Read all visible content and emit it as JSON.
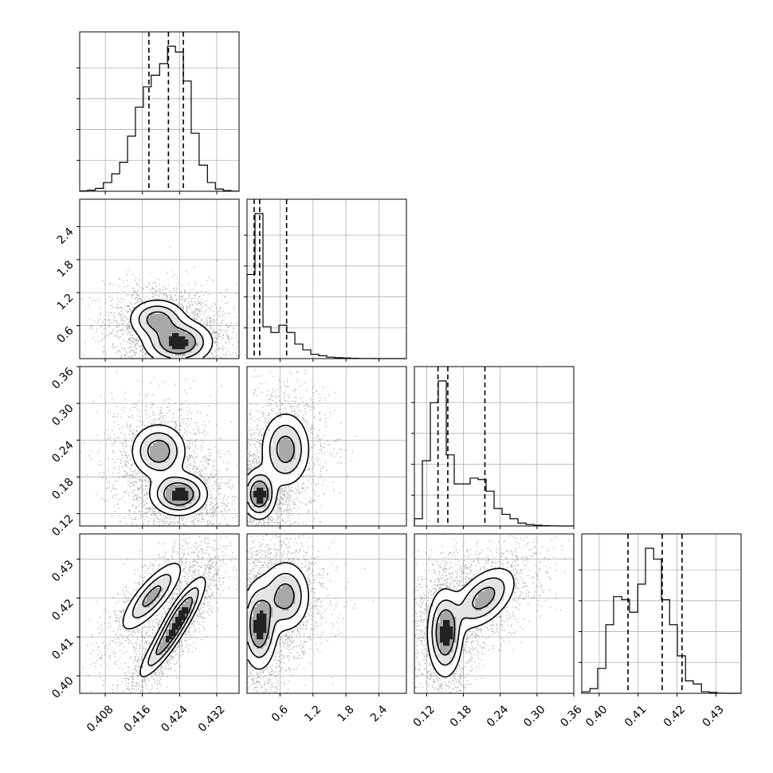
{
  "chart_data": {
    "type": "corner",
    "grid": true,
    "parameters": [
      {
        "range": [
          0.4025,
          0.4368
        ],
        "ticks": [
          0.408,
          0.416,
          0.424,
          0.432
        ],
        "tick_labels": [
          "0.408",
          "0.416",
          "0.424",
          "0.432"
        ]
      },
      {
        "range": [
          0.0,
          2.9
        ],
        "ticks": [
          0.6,
          1.2,
          1.8,
          2.4
        ],
        "tick_labels": [
          "0.6",
          "1.2",
          "1.8",
          "2.4"
        ]
      },
      {
        "range": [
          0.1,
          0.36
        ],
        "ticks": [
          0.12,
          0.18,
          0.24,
          0.3,
          0.36
        ],
        "tick_labels": [
          "0.12",
          "0.18",
          "0.24",
          "0.30",
          "0.36"
        ]
      },
      {
        "range": [
          0.3955,
          0.4365
        ],
        "ticks": [
          0.4,
          0.41,
          0.42,
          0.43
        ],
        "tick_labels": [
          "0.40",
          "0.41",
          "0.42",
          "0.43"
        ]
      }
    ],
    "diagonal": [
      {
        "bin_edges": [
          0.4025,
          0.4042,
          0.4059,
          0.4076,
          0.4094,
          0.4111,
          0.4128,
          0.4145,
          0.4162,
          0.4179,
          0.4197,
          0.4214,
          0.4231,
          0.4248,
          0.4265,
          0.4282,
          0.43,
          0.4317,
          0.4334,
          0.4351,
          0.4368
        ],
        "counts": [
          0.2,
          0.8,
          2,
          6,
          12,
          20,
          38,
          58,
          72,
          80,
          88,
          100,
          96,
          76,
          40,
          18,
          6,
          1.5,
          0.5,
          0.1
        ],
        "quantiles": [
          0.4174,
          0.4216,
          0.4248
        ]
      },
      {
        "bin_edges": [
          0.0,
          0.145,
          0.29,
          0.435,
          0.58,
          0.725,
          0.87,
          1.015,
          1.16,
          1.305,
          1.45,
          1.595,
          1.74,
          1.885,
          2.03,
          2.175,
          2.32,
          2.465,
          2.61,
          2.755,
          2.9
        ],
        "counts": [
          58,
          100,
          22,
          18,
          23,
          18,
          10,
          6,
          3,
          2,
          1,
          0.6,
          0.4,
          0.2,
          0.1,
          0.05,
          0.02,
          0.01,
          0.01,
          0.0
        ],
        "quantiles": [
          0.13,
          0.23,
          0.72
        ]
      },
      {
        "bin_edges": [
          0.1,
          0.113,
          0.126,
          0.139,
          0.152,
          0.165,
          0.178,
          0.191,
          0.204,
          0.217,
          0.23,
          0.243,
          0.256,
          0.269,
          0.282,
          0.295,
          0.308,
          0.321,
          0.334,
          0.347,
          0.36
        ],
        "counts": [
          5,
          45,
          85,
          100,
          49,
          29,
          29,
          33,
          32,
          24,
          12,
          8,
          5,
          2,
          1,
          0.5,
          0.2,
          0.1,
          0.0,
          0.0
        ],
        "quantiles": [
          0.1385,
          0.1545,
          0.215
        ]
      },
      {
        "bin_edges": [
          0.3955,
          0.3976,
          0.3996,
          0.4017,
          0.4037,
          0.4058,
          0.4078,
          0.4099,
          0.4119,
          0.414,
          0.416,
          0.4181,
          0.4201,
          0.4222,
          0.4242,
          0.4263,
          0.4283,
          0.4304,
          0.4324,
          0.4345,
          0.4365
        ],
        "counts": [
          1,
          3,
          16,
          44,
          62,
          60,
          52,
          70,
          93,
          86,
          60,
          44,
          24,
          8,
          6,
          1,
          0.5,
          0.1,
          0.0,
          0.0
        ],
        "quantiles": [
          0.4074,
          0.4162,
          0.4213
        ]
      }
    ],
    "pairs": [
      {
        "x": 0,
        "y": 1,
        "modes": [
          {
            "cx": 0.4237,
            "cy": 0.3,
            "sx": 0.0036,
            "sy": 0.2,
            "w": 1.0
          },
          {
            "cx": 0.4192,
            "cy": 0.72,
            "sx": 0.003,
            "sy": 0.18,
            "w": 0.75
          }
        ]
      },
      {
        "x": 0,
        "y": 2,
        "modes": [
          {
            "cx": 0.4238,
            "cy": 0.152,
            "sx": 0.003,
            "sy": 0.017,
            "w": 1.0
          },
          {
            "cx": 0.4195,
            "cy": 0.222,
            "sx": 0.0029,
            "sy": 0.022,
            "w": 0.8
          }
        ]
      },
      {
        "x": 0,
        "y": 3,
        "modes": [
          {
            "cx": 0.4241,
            "cy": 0.4155,
            "sx": 0.0027,
            "sy": 0.0049,
            "rho": 0.85,
            "w": 1.0
          },
          {
            "cx": 0.42,
            "cy": 0.407,
            "sx": 0.0026,
            "sy": 0.0042,
            "rho": 0.85,
            "w": 0.55
          },
          {
            "cx": 0.418,
            "cy": 0.4205,
            "sx": 0.0033,
            "sy": 0.0045,
            "rho": 0.8,
            "w": 0.75
          }
        ]
      },
      {
        "x": 1,
        "y": 2,
        "modes": [
          {
            "cx": 0.22,
            "cy": 0.152,
            "sx": 0.15,
            "sy": 0.02,
            "w": 1.0
          },
          {
            "cx": 0.7,
            "cy": 0.225,
            "sx": 0.22,
            "sy": 0.03,
            "w": 0.75
          }
        ]
      },
      {
        "x": 1,
        "y": 3,
        "modes": [
          {
            "cx": 0.22,
            "cy": 0.413,
            "sx": 0.16,
            "sy": 0.0055,
            "w": 1.0
          },
          {
            "cx": 0.7,
            "cy": 0.4205,
            "sx": 0.22,
            "sy": 0.0045,
            "w": 0.75
          }
        ]
      },
      {
        "x": 2,
        "y": 3,
        "modes": [
          {
            "cx": 0.15,
            "cy": 0.411,
            "sx": 0.014,
            "sy": 0.0055,
            "w": 1.0
          },
          {
            "cx": 0.213,
            "cy": 0.42,
            "sx": 0.026,
            "sy": 0.004,
            "rho": 0.5,
            "w": 0.75
          }
        ]
      }
    ]
  }
}
